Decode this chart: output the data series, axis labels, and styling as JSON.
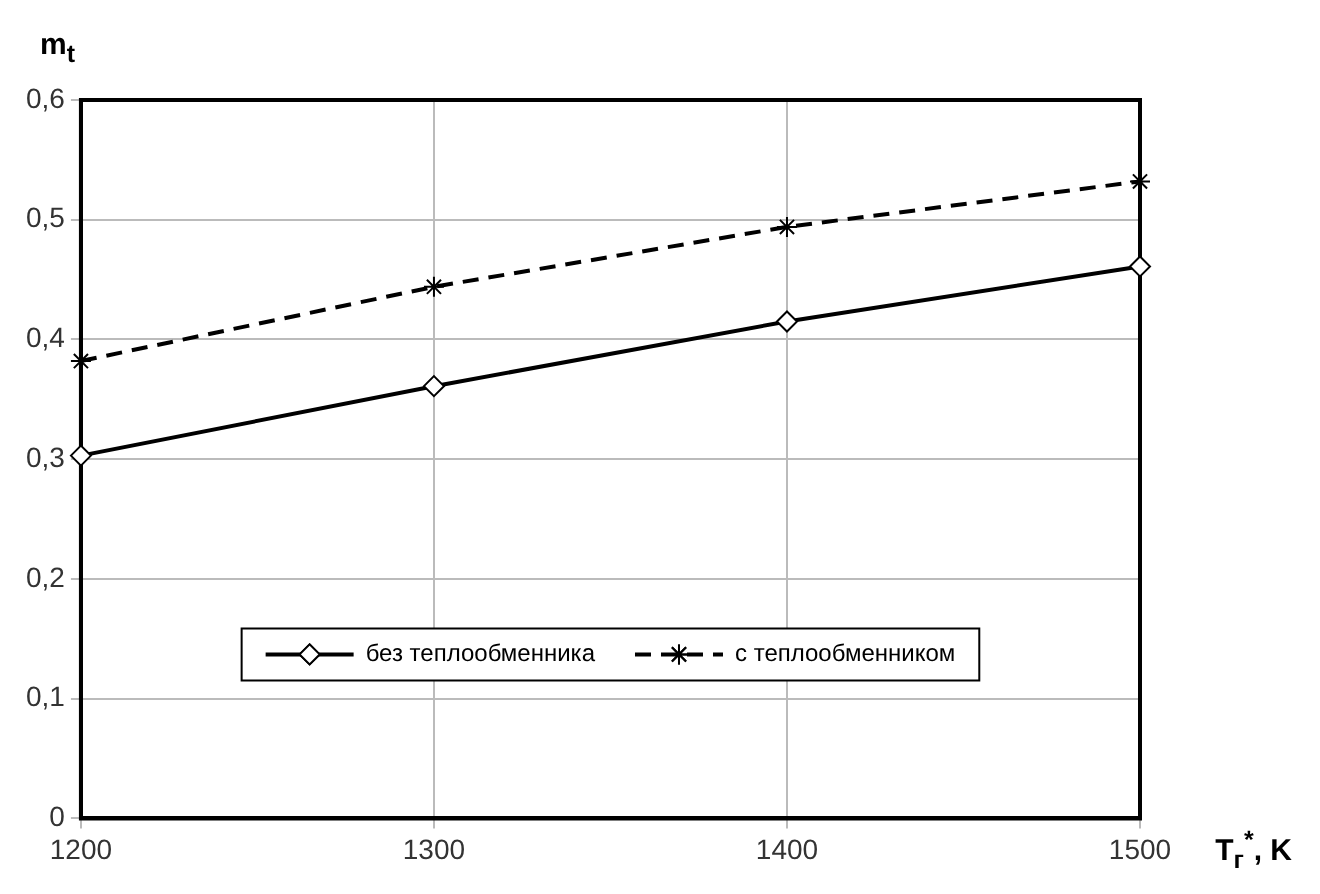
{
  "chart_data": {
    "type": "line",
    "xlabel": "T$_{г}$$^{*}$, K",
    "ylabel": "m$_{t}$",
    "x": [
      1200,
      1300,
      1400,
      1500
    ],
    "series": [
      {
        "name": "без теплообменника",
        "color": "#000000",
        "values": [
          0.303,
          0.361,
          0.415,
          0.461
        ],
        "marker": "diamond",
        "line_style": "solid"
      },
      {
        "name": "с теплообменником",
        "color": "#000000",
        "values": [
          0.382,
          0.444,
          0.494,
          0.532
        ],
        "marker": "cross",
        "line_style": "dashed"
      }
    ],
    "xlim": [
      1200,
      1500
    ],
    "xticks": [
      1200,
      1300,
      1400,
      1500
    ],
    "ylim": [
      0,
      0.6
    ],
    "yticks": [
      0,
      {
        "value": 0.1,
        "label": "0,1"
      },
      {
        "value": 0.2,
        "label": "0,2"
      },
      {
        "value": 0.3,
        "label": "0,3"
      },
      {
        "value": 0.4,
        "label": "0,4"
      },
      {
        "value": 0.5,
        "label": "0,5"
      },
      {
        "value": 0.6,
        "label": "0,6"
      }
    ],
    "grid": true,
    "legend": "bottom"
  }
}
